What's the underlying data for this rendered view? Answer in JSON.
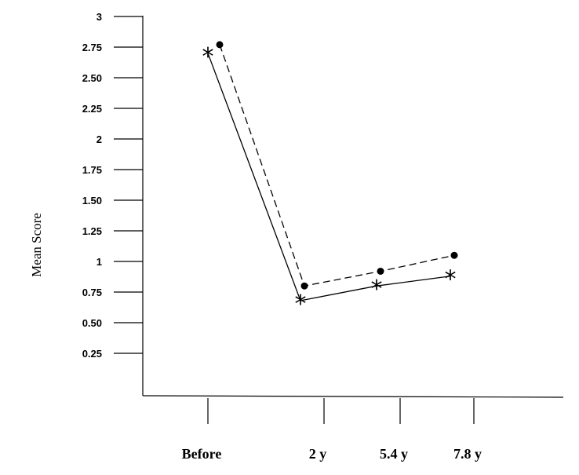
{
  "chart_data": {
    "type": "line",
    "ylabel": "Mean   Score",
    "categories": [
      "Before",
      "2 y",
      "5.4 y",
      "7.8 y"
    ],
    "y_ticks": [
      "3",
      "2.75",
      "2.50",
      "2.25",
      "2",
      "1.75",
      "1.50",
      "1.25",
      "1",
      "0.75",
      "0.50",
      "0.25"
    ],
    "ylim": [
      0,
      3
    ],
    "grid": false,
    "legend": "none",
    "series": [
      {
        "style": "solid",
        "marker": "asterisk",
        "values": [
          2.7,
          0.68,
          0.8,
          0.88
        ]
      },
      {
        "style": "dashed",
        "marker": "dot",
        "values": [
          2.77,
          0.8,
          0.92,
          1.05
        ]
      }
    ]
  }
}
